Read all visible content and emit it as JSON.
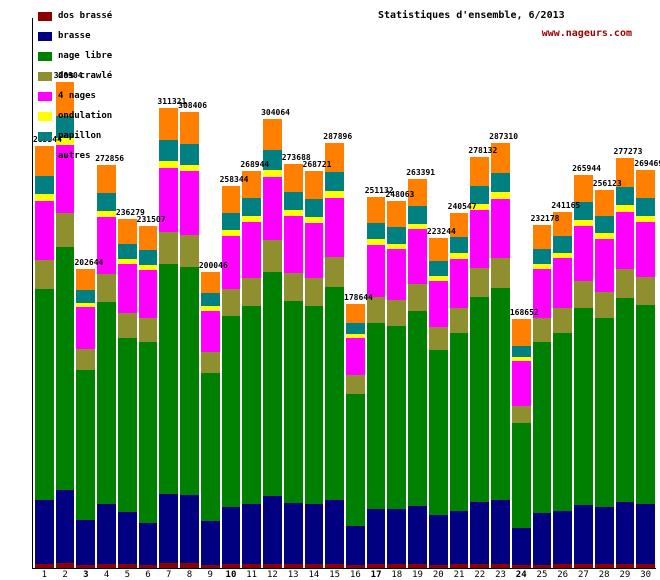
{
  "header": {
    "website": "www.nageurs.com"
  },
  "legend": {
    "items": [
      {
        "label": "dos brassé",
        "color": "#8b0000"
      },
      {
        "label": "brasse",
        "color": "#000080"
      },
      {
        "label": "nage libre",
        "color": "#008000"
      },
      {
        "label": "dos crawlé",
        "color": "#8f8f2f"
      },
      {
        "label": "4 nages",
        "color": "#ff00ff"
      },
      {
        "label": "ondulation",
        "color": "#ffff00"
      },
      {
        "label": "papillon",
        "color": "#008080"
      },
      {
        "label": "autres",
        "color": "#ff8000"
      }
    ]
  },
  "chart_data": {
    "type": "bar",
    "stacked": true,
    "title": "Statistiques d'ensemble, 6/2013",
    "xlabel": "",
    "ylabel": "",
    "grid": false,
    "legend_position": "top-left",
    "ylim": [
      0,
      340000
    ],
    "categories": [
      "1",
      "2",
      "3",
      "4",
      "5",
      "6",
      "7",
      "8",
      "9",
      "10",
      "11",
      "12",
      "13",
      "14",
      "15",
      "16",
      "17",
      "18",
      "19",
      "20",
      "21",
      "22",
      "23",
      "24",
      "25",
      "26",
      "27",
      "28",
      "29",
      "30"
    ],
    "bold_categories": [
      "3",
      "10",
      "17",
      "24"
    ],
    "totals": [
      285544,
      328904,
      202644,
      272856,
      236279,
      231507,
      311321,
      308406,
      200046,
      258344,
      268944,
      304064,
      273688,
      268721,
      287896,
      178644,
      251132,
      248063,
      263391,
      223244,
      240547,
      278132,
      287310,
      168652,
      232178,
      241165,
      265944,
      256123,
      277273,
      269469
    ],
    "series": [
      {
        "name": "dos brassé",
        "color": "#8b0000",
        "values": [
          2900,
          3300,
          2000,
          2700,
          2400,
          2300,
          3100,
          3100,
          2000,
          2600,
          2700,
          3000,
          2700,
          2700,
          2900,
          1800,
          2500,
          2500,
          2600,
          2200,
          2400,
          2800,
          2900,
          1700,
          2300,
          2400,
          2700,
          2600,
          2800,
          2700
        ]
      },
      {
        "name": "brasse",
        "color": "#000080",
        "values": [
          42800,
          49300,
          30400,
          40900,
          35400,
          27800,
          46700,
          46300,
          30000,
          38800,
          40300,
          45600,
          41100,
          40300,
          43200,
          26800,
          37700,
          37200,
          39500,
          33500,
          36100,
          41700,
          43100,
          25300,
          34800,
          36200,
          39900,
          38400,
          41600,
          40400
        ]
      },
      {
        "name": "nage libre",
        "color": "#008000",
        "values": [
          142800,
          164500,
          101300,
          136400,
          118100,
          122700,
          155700,
          154200,
          100000,
          129200,
          134500,
          152000,
          136800,
          134400,
          143900,
          89300,
          125600,
          124000,
          131700,
          111600,
          120300,
          139100,
          143700,
          70800,
          116100,
          120600,
          133000,
          128100,
          138600,
          134700
        ]
      },
      {
        "name": "dos crawlé",
        "color": "#8f8f2f",
        "values": [
          20000,
          23000,
          14200,
          19100,
          16500,
          16200,
          21800,
          21600,
          14000,
          18100,
          18800,
          21300,
          19200,
          18800,
          20200,
          12500,
          17600,
          17400,
          18400,
          15600,
          16800,
          19500,
          20100,
          11800,
          16300,
          16900,
          18600,
          17900,
          19400,
          18900
        ]
      },
      {
        "name": "4 nages",
        "color": "#ff00ff",
        "values": [
          40000,
          46000,
          28400,
          38200,
          33100,
          32400,
          43600,
          43200,
          28000,
          36200,
          37700,
          42600,
          38300,
          37600,
          40300,
          25000,
          35200,
          34700,
          36900,
          31300,
          33700,
          38900,
          40200,
          30400,
          32500,
          33800,
          37200,
          35900,
          38800,
          37700
        ]
      },
      {
        "name": "ondulation",
        "color": "#ffff00",
        "values": [
          4300,
          4900,
          3000,
          4100,
          3500,
          3500,
          4700,
          4600,
          3000,
          3900,
          4000,
          4600,
          4100,
          4000,
          4300,
          2700,
          3800,
          3700,
          4000,
          3300,
          3600,
          4200,
          4300,
          2500,
          3500,
          3600,
          4000,
          3800,
          4200,
          4000
        ]
      },
      {
        "name": "papillon",
        "color": "#008080",
        "values": [
          12800,
          14800,
          9100,
          12300,
          10600,
          10400,
          14000,
          13900,
          9000,
          11600,
          12100,
          13700,
          12300,
          12100,
          13000,
          8000,
          11300,
          11200,
          11900,
          10000,
          10800,
          12500,
          12900,
          7600,
          10400,
          10900,
          12000,
          11500,
          12500,
          12100
        ]
      },
      {
        "name": "autres",
        "color": "#ff8000",
        "values": [
          19944,
          23104,
          14244,
          19156,
          16679,
          16207,
          21721,
          21506,
          14046,
          17944,
          18844,
          21264,
          19188,
          18821,
          20096,
          12544,
          17432,
          17363,
          18391,
          15744,
          16847,
          19432,
          20110,
          18552,
          16278,
          16765,
          18544,
          17923,
          19373,
          18969
        ]
      }
    ]
  }
}
